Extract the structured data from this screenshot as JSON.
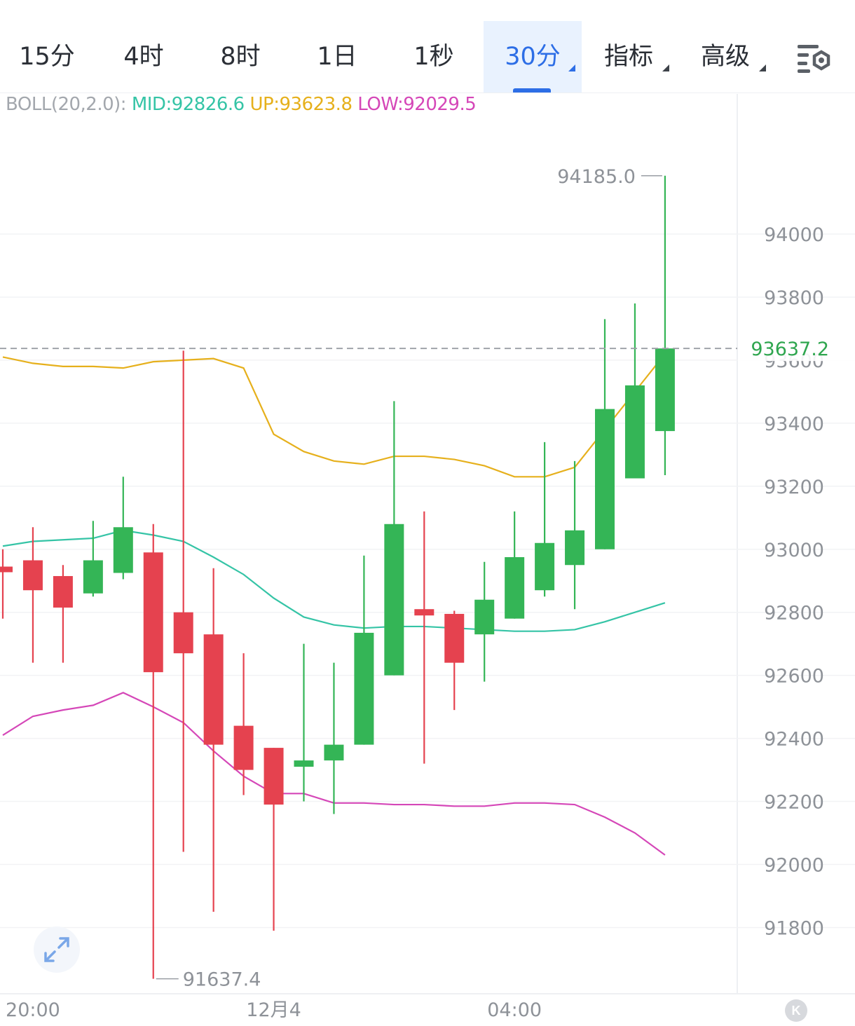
{
  "tabs": [
    {
      "label": "15分",
      "active": false,
      "dropdown": false
    },
    {
      "label": "4时",
      "active": false,
      "dropdown": false
    },
    {
      "label": "8时",
      "active": false,
      "dropdown": false
    },
    {
      "label": "1日",
      "active": false,
      "dropdown": false
    },
    {
      "label": "1秒",
      "active": false,
      "dropdown": false
    },
    {
      "label": "30分",
      "active": true,
      "dropdown": true
    },
    {
      "label": "指标",
      "active": false,
      "dropdown": true
    },
    {
      "label": "高级",
      "active": false,
      "dropdown": true
    }
  ],
  "indicator": {
    "label": "BOLL(20,2.0):",
    "mid": "MID:92826.6",
    "up": "UP:93623.8",
    "low": "LOW:92029.5"
  },
  "colors": {
    "up_candle": "#34b556",
    "down_candle": "#e5424f",
    "mid_line": "#35c4a6",
    "up_line": "#e6b01c",
    "low_line": "#d547b8",
    "accent": "#2d6ee6"
  },
  "icons": {
    "settings": "chart-settings-icon",
    "expand": "expand-arrows-icon",
    "k": "k-badge-icon"
  },
  "k_label": "K",
  "chart_data": {
    "type": "candlestick",
    "interval": "30分",
    "y_ticks": [
      94000,
      93800,
      93600,
      93400,
      93200,
      93000,
      92800,
      92600,
      92400,
      92200,
      92000,
      91800
    ],
    "y_tick_labels": [
      "94000",
      "93800",
      "93600",
      "93400",
      "93200",
      "93000",
      "92800",
      "92600",
      "92400",
      "92200",
      "92000",
      "91800"
    ],
    "ylim": [
      91600,
      94400
    ],
    "x_labels": [
      {
        "label": "20:00",
        "index": 1
      },
      {
        "label": "12月4",
        "index": 9
      },
      {
        "label": "04:00",
        "index": 17
      }
    ],
    "current_price": 93637.2,
    "current_price_label": "93637.2",
    "max_label": {
      "value": 94185.0,
      "text": "94185.0",
      "index": 22
    },
    "min_label": {
      "value": 91637.4,
      "text": "91637.4",
      "index": 5
    },
    "candles": [
      {
        "open": 92945,
        "high": 93000,
        "low": 92780,
        "close": 92930
      },
      {
        "open": 92965,
        "high": 93070,
        "low": 92640,
        "close": 92870
      },
      {
        "open": 92915,
        "high": 92950,
        "low": 92640,
        "close": 92815
      },
      {
        "open": 92860,
        "high": 93090,
        "low": 92850,
        "close": 92965
      },
      {
        "open": 92925,
        "high": 93230,
        "low": 92905,
        "close": 93070
      },
      {
        "open": 92990,
        "high": 93080,
        "low": 91637.4,
        "close": 92610
      },
      {
        "open": 92800,
        "high": 93630,
        "low": 92040,
        "close": 92670
      },
      {
        "open": 92730,
        "high": 92940,
        "low": 91850,
        "close": 92380
      },
      {
        "open": 92440,
        "high": 92670,
        "low": 92220,
        "close": 92300
      },
      {
        "open": 92370,
        "high": 92370,
        "low": 91790,
        "close": 92190
      },
      {
        "open": 92310,
        "high": 92700,
        "low": 92200,
        "close": 92330
      },
      {
        "open": 92330,
        "high": 92640,
        "low": 92160,
        "close": 92380
      },
      {
        "open": 92380,
        "high": 92980,
        "low": 92380,
        "close": 92735
      },
      {
        "open": 92600,
        "high": 93470,
        "low": 92600,
        "close": 93080
      },
      {
        "open": 92810,
        "high": 93120,
        "low": 92320,
        "close": 92790
      },
      {
        "open": 92795,
        "high": 92805,
        "low": 92490,
        "close": 92640
      },
      {
        "open": 92730,
        "high": 92960,
        "low": 92580,
        "close": 92840
      },
      {
        "open": 92780,
        "high": 93120,
        "low": 92780,
        "close": 92975
      },
      {
        "open": 92870,
        "high": 93340,
        "low": 92850,
        "close": 93020
      },
      {
        "open": 92950,
        "high": 93280,
        "low": 92810,
        "close": 93060
      },
      {
        "open": 93000,
        "high": 93730,
        "low": 93000,
        "close": 93445
      },
      {
        "open": 93225,
        "high": 93780,
        "low": 93225,
        "close": 93520
      },
      {
        "open": 93375,
        "high": 94185.0,
        "low": 93235,
        "close": 93637.2
      }
    ],
    "boll": {
      "up": [
        93610,
        93590,
        93580,
        93580,
        93575,
        93595,
        93600,
        93605,
        93575,
        93365,
        93310,
        93280,
        93270,
        93295,
        93295,
        93285,
        93265,
        93230,
        93230,
        93260,
        93380,
        93500,
        93620
      ],
      "mid": [
        93010,
        93025,
        93030,
        93035,
        93060,
        93045,
        93025,
        92975,
        92920,
        92845,
        92785,
        92760,
        92750,
        92755,
        92755,
        92750,
        92745,
        92740,
        92740,
        92745,
        92770,
        92800,
        92830
      ],
      "low": [
        92410,
        92470,
        92490,
        92505,
        92545,
        92500,
        92450,
        92360,
        92280,
        92225,
        92225,
        92195,
        92195,
        92190,
        92190,
        92185,
        92185,
        92195,
        92195,
        92190,
        92150,
        92100,
        92030
      ]
    }
  }
}
